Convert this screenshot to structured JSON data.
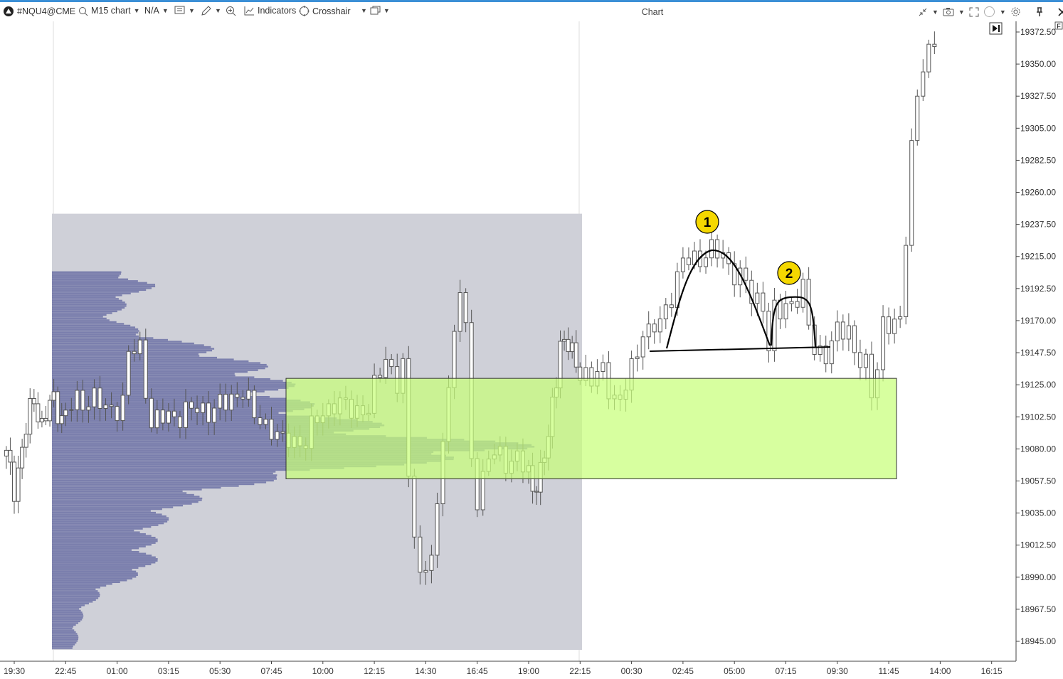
{
  "toolbar": {
    "symbol": "#NQU4@CME",
    "timeframe": "M15 chart",
    "account": "N/A",
    "indicators_label": "Indicators",
    "crosshair_label": "Crosshair",
    "window_title": "Chart",
    "icons": [
      "app-logo-icon",
      "search-icon",
      "template-icon",
      "pencil-icon",
      "zoom-icon",
      "indicators-icon",
      "crosshair-icon",
      "layout-icon",
      "minimize-icon",
      "camera-icon",
      "fullscreen-icon",
      "circle-icon",
      "settings-icon",
      "pin-icon",
      "close-icon"
    ],
    "accent": "#3b8fd6"
  },
  "corner_badge": "F",
  "chart_data": {
    "type": "candlestick",
    "y_ticks": [
      "19372.50",
      "19350.00",
      "19327.50",
      "19305.00",
      "19282.50",
      "19260.00",
      "19237.50",
      "19215.00",
      "19192.50",
      "19170.00",
      "19147.50",
      "19125.00",
      "19102.50",
      "19080.00",
      "19057.50",
      "19035.00",
      "19012.50",
      "18990.00",
      "18967.50",
      "18945.00"
    ],
    "ylim": [
      18935,
      19385
    ],
    "x_ticks": [
      "19:30",
      "22:45",
      "01:00",
      "03:15",
      "05:30",
      "07:45",
      "10:00",
      "12:15",
      "14:30",
      "16:45",
      "19:00",
      "22:15",
      "00:30",
      "02:45",
      "05:00",
      "07:15",
      "09:30",
      "11:45",
      "14:00",
      "16:15"
    ],
    "close_samples": [
      [
        "19:00",
        19075
      ],
      [
        "19:30",
        19053
      ],
      [
        "20:30",
        19106
      ],
      [
        "20:45",
        19116
      ],
      [
        "21:15",
        19096
      ],
      [
        "22:00",
        19116
      ],
      [
        "22:30",
        19101
      ],
      [
        "23:15",
        19113
      ],
      [
        "00:00",
        19116
      ],
      [
        "00:30",
        19106
      ],
      [
        "01:15",
        19113
      ],
      [
        "01:30",
        19146
      ],
      [
        "02:00",
        19150
      ],
      [
        "02:30",
        19098
      ],
      [
        "03:00",
        19101
      ],
      [
        "04:00",
        19106
      ],
      [
        "05:00",
        19108
      ],
      [
        "05:45",
        19111
      ],
      [
        "06:30",
        19123
      ],
      [
        "07:00",
        19101
      ],
      [
        "07:45",
        19096
      ],
      [
        "08:15",
        19083
      ],
      [
        "08:30",
        19086
      ],
      [
        "09:15",
        19086
      ],
      [
        "10:00",
        19106
      ],
      [
        "10:30",
        19113
      ],
      [
        "11:00",
        19108
      ],
      [
        "12:00",
        19108
      ],
      [
        "12:45",
        19146
      ],
      [
        "13:15",
        19126
      ],
      [
        "13:30",
        19136
      ],
      [
        "13:45",
        19056
      ],
      [
        "14:00",
        19026
      ],
      [
        "14:15",
        18991
      ],
      [
        "14:45",
        19006
      ],
      [
        "15:00",
        19031
      ],
      [
        "15:15",
        19091
      ],
      [
        "15:30",
        19126
      ],
      [
        "16:00",
        19195
      ],
      [
        "16:15",
        19160
      ],
      [
        "16:30",
        19071
      ],
      [
        "16:45",
        19046
      ],
      [
        "17:15",
        19076
      ],
      [
        "18:00",
        19071
      ],
      [
        "18:30",
        19076
      ],
      [
        "19:15",
        19051
      ],
      [
        "19:45",
        19066
      ],
      [
        "20:15",
        19086
      ],
      [
        "21:00",
        19156
      ],
      [
        "21:30",
        19151
      ],
      [
        "22:15",
        19136
      ],
      [
        "22:45",
        19126
      ],
      [
        "23:15",
        19136
      ],
      [
        "23:45",
        19116
      ],
      [
        "00:00",
        19111
      ],
      [
        "00:30",
        19136
      ],
      [
        "01:00",
        19165
      ],
      [
        "01:15",
        19160
      ],
      [
        "01:45",
        19168
      ],
      [
        "02:15",
        19190
      ],
      [
        "02:45",
        19210
      ],
      [
        "03:15",
        19213
      ],
      [
        "03:45",
        19218
      ],
      [
        "04:00",
        19218
      ],
      [
        "04:30",
        19215
      ],
      [
        "05:00",
        19205
      ],
      [
        "05:30",
        19195
      ],
      [
        "05:45",
        19185
      ],
      [
        "06:15",
        19185
      ],
      [
        "06:30",
        19150
      ],
      [
        "06:45",
        19175
      ],
      [
        "07:00",
        19175
      ],
      [
        "07:30",
        19185
      ],
      [
        "08:00",
        19190
      ],
      [
        "08:15",
        19165
      ],
      [
        "08:30",
        19150
      ],
      [
        "09:00",
        19148
      ],
      [
        "09:30",
        19160
      ],
      [
        "10:00",
        19165
      ],
      [
        "10:15",
        19150
      ],
      [
        "10:45",
        19136
      ],
      [
        "11:00",
        19116
      ],
      [
        "11:15",
        19140
      ],
      [
        "11:30",
        19170
      ],
      [
        "12:15",
        19165
      ],
      [
        "12:45",
        19295
      ],
      [
        "13:00",
        19330
      ],
      [
        "13:15",
        19348
      ],
      [
        "13:30",
        19353
      ],
      [
        "14:00",
        19377
      ]
    ],
    "volume_profile": {
      "color": "#7b7fad",
      "range_color": "#cfd0d8",
      "price_range": [
        18939,
        19245
      ],
      "levels": [
        [
          19204,
          0.14
        ],
        [
          19195,
          0.2
        ],
        [
          19185,
          0.15
        ],
        [
          19170,
          0.12
        ],
        [
          19160,
          0.2
        ],
        [
          19150,
          0.32
        ],
        [
          19140,
          0.4
        ],
        [
          19130,
          0.45
        ],
        [
          19120,
          0.47
        ],
        [
          19110,
          0.5
        ],
        [
          19100,
          0.6
        ],
        [
          19090,
          0.7
        ],
        [
          19080,
          1.0
        ],
        [
          19070,
          0.7
        ],
        [
          19060,
          0.45
        ],
        [
          19050,
          0.32
        ],
        [
          19040,
          0.26
        ],
        [
          19030,
          0.22
        ],
        [
          19020,
          0.2
        ],
        [
          18995,
          0.2
        ],
        [
          18985,
          0.12
        ],
        [
          18970,
          0.07
        ],
        [
          18955,
          0.05
        ],
        [
          18940,
          0.05
        ]
      ]
    },
    "zone": {
      "price_top": 19129.5,
      "price_bottom": 19059,
      "color": "#c8ff7a"
    },
    "annotations": [
      {
        "label": "1"
      },
      {
        "label": "2"
      }
    ],
    "annotation_color": "#f5d800"
  }
}
